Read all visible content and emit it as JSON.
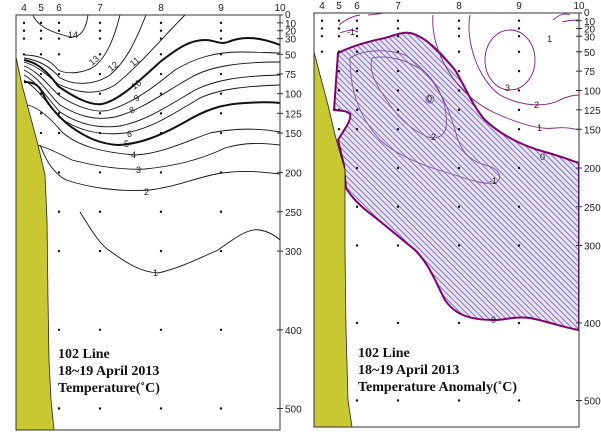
{
  "chart_data": [
    {
      "type": "contour",
      "title_lines": [
        "102 Line",
        "18~19 April 2013",
        "Temperature(˚C)"
      ],
      "x_stations": [
        "4",
        "5",
        "6",
        "7",
        "8",
        "9",
        "10"
      ],
      "y_ticks": [
        "0",
        "10",
        "20",
        "30",
        "50",
        "75",
        "100",
        "125",
        "150",
        "200",
        "250",
        "300",
        "400",
        "500"
      ],
      "y_axis": "depth (m), increasing downward",
      "contour_levels": [
        "1",
        "2",
        "3",
        "4",
        "5",
        "6",
        "7",
        "8",
        "9",
        "10",
        "11",
        "12",
        "13",
        "14"
      ],
      "bold_levels": [
        "5",
        "10"
      ],
      "land_color": "#c8c832",
      "line_color": "#111111"
    },
    {
      "type": "contour",
      "title_lines": [
        "102 Line",
        "18~19 April 2013",
        "Temperature Anomaly(˚C)"
      ],
      "x_stations": [
        "4",
        "5",
        "6",
        "7",
        "8",
        "9",
        "10"
      ],
      "y_ticks": [
        "0",
        "10",
        "20",
        "30",
        "50",
        "75",
        "100",
        "125",
        "150",
        "200",
        "250",
        "300",
        "400",
        "500"
      ],
      "y_axis": "depth (m), increasing downward",
      "contour_levels": [
        "-2",
        "-1",
        "0",
        "1",
        "2",
        "3"
      ],
      "negative_region": "hatched",
      "land_color": "#c8c832",
      "zero_line_color": "#800070",
      "contour_color": "#8050a0",
      "hatch_color": "#6a5ab0"
    }
  ]
}
